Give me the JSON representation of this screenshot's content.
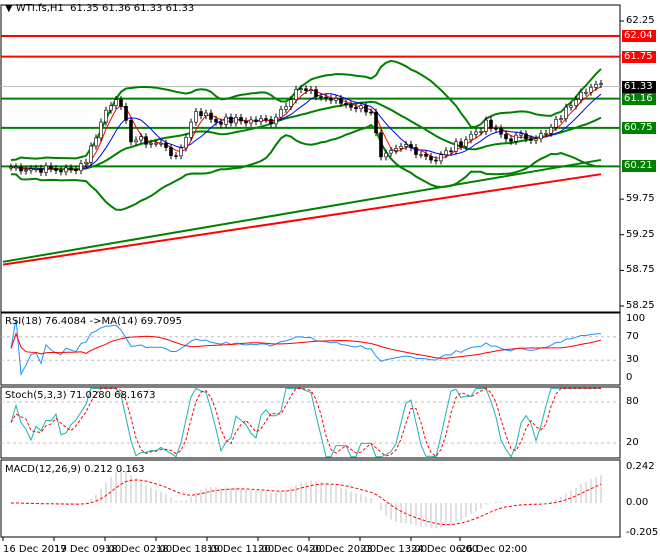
{
  "header": {
    "symbol": "WTI.fs,H1",
    "ohlc": "61.35 61.36 61.33 61.33"
  },
  "levels": [
    {
      "value": "62.04",
      "price": 62.04,
      "color": "#ff0000"
    },
    {
      "value": "61.75",
      "price": 61.75,
      "color": "#ff0000"
    },
    {
      "value": "61.16",
      "price": 61.16,
      "color": "#008000"
    },
    {
      "value": "60.75",
      "price": 60.75,
      "color": "#008000"
    },
    {
      "value": "60.21",
      "price": 60.21,
      "color": "#008000"
    }
  ],
  "current_price": {
    "value": "61.33",
    "price": 61.33
  },
  "price_axis": [
    "62.25",
    "59.75",
    "59.25",
    "58.75",
    "58.25"
  ],
  "rsi": {
    "title": "RSI(18) 76.4084  ->MA(14) 69.7095",
    "axis": [
      "100",
      "70",
      "30",
      "0"
    ]
  },
  "stoch": {
    "title": "Stoch(5,3,3) 71.0280 68.1673",
    "axis": [
      "80",
      "20"
    ]
  },
  "macd": {
    "title": "MACD(12,26,9) 0.212 0.163",
    "axis": [
      "0.242",
      "0.00",
      "-0.205"
    ]
  },
  "time_axis": [
    "16 Dec 2019",
    "17 Dec 09:00",
    "18 Dec 02:00",
    "18 Dec 18:00",
    "19 Dec 11:00",
    "20 Dec 04:00",
    "20 Dec 20:00",
    "23 Dec 13:00",
    "24 Dec 06:00",
    "26 Dec 02:00"
  ],
  "chart_data": {
    "type": "line",
    "title": "WTI.fs,H1",
    "ylim": [
      58.25,
      62.25
    ],
    "close_keypoints": [
      [
        0,
        60.2
      ],
      [
        12,
        60.15
      ],
      [
        15,
        60.3
      ],
      [
        19,
        61.0
      ],
      [
        21,
        61.2
      ],
      [
        24,
        60.6
      ],
      [
        31,
        60.5
      ],
      [
        33,
        60.3
      ],
      [
        37,
        61.0
      ],
      [
        41,
        60.85
      ],
      [
        52,
        60.85
      ],
      [
        55,
        61.1
      ],
      [
        57,
        61.3
      ],
      [
        66,
        61.1
      ],
      [
        72,
        61.0
      ],
      [
        74,
        60.3
      ],
      [
        79,
        60.5
      ],
      [
        85,
        60.3
      ],
      [
        89,
        60.5
      ],
      [
        95,
        60.8
      ],
      [
        99,
        60.6
      ],
      [
        107,
        60.65
      ],
      [
        111,
        61.0
      ],
      [
        114,
        61.3
      ],
      [
        118,
        61.33
      ]
    ],
    "long_ma_green": [
      58.87,
      60.3
    ],
    "long_ma_red": [
      58.83,
      60.1
    ],
    "colors": {
      "bands": "#008000",
      "ma_fast": "#ff0000",
      "ma_slow": "#0000ff",
      "rsi": "#1e90ff",
      "signal": "#ff0000",
      "stoch_main": "#20b2aa",
      "macd_hist": "#c0c0c0"
    }
  }
}
